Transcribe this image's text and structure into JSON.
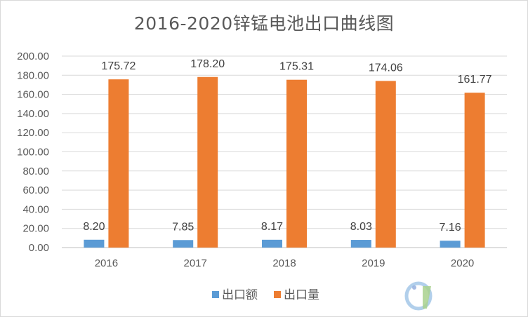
{
  "chart_data": {
    "type": "bar",
    "title": "2016-2020锌锰电池出口曲线图",
    "categories": [
      "2016",
      "2017",
      "2018",
      "2019",
      "2020"
    ],
    "series": [
      {
        "name": "出口额",
        "color": "#5b9bd5",
        "values": [
          8.2,
          7.85,
          8.17,
          8.03,
          7.16
        ],
        "labels": [
          "8.20",
          "7.85",
          "8.17",
          "8.03",
          "7.16"
        ]
      },
      {
        "name": "出口量",
        "color": "#ed7d31",
        "values": [
          175.72,
          178.2,
          175.31,
          174.06,
          161.77
        ],
        "labels": [
          "175.72",
          "178.20",
          "175.31",
          "174.06",
          "161.77"
        ]
      }
    ],
    "ylim": [
      0,
      200
    ],
    "yticks": [
      "0.00",
      "20.00",
      "40.00",
      "60.00",
      "80.00",
      "100.00",
      "120.00",
      "140.00",
      "160.00",
      "180.00",
      "200.00"
    ],
    "xlabel": "",
    "ylabel": "",
    "grid": true,
    "legend": "bottom"
  }
}
